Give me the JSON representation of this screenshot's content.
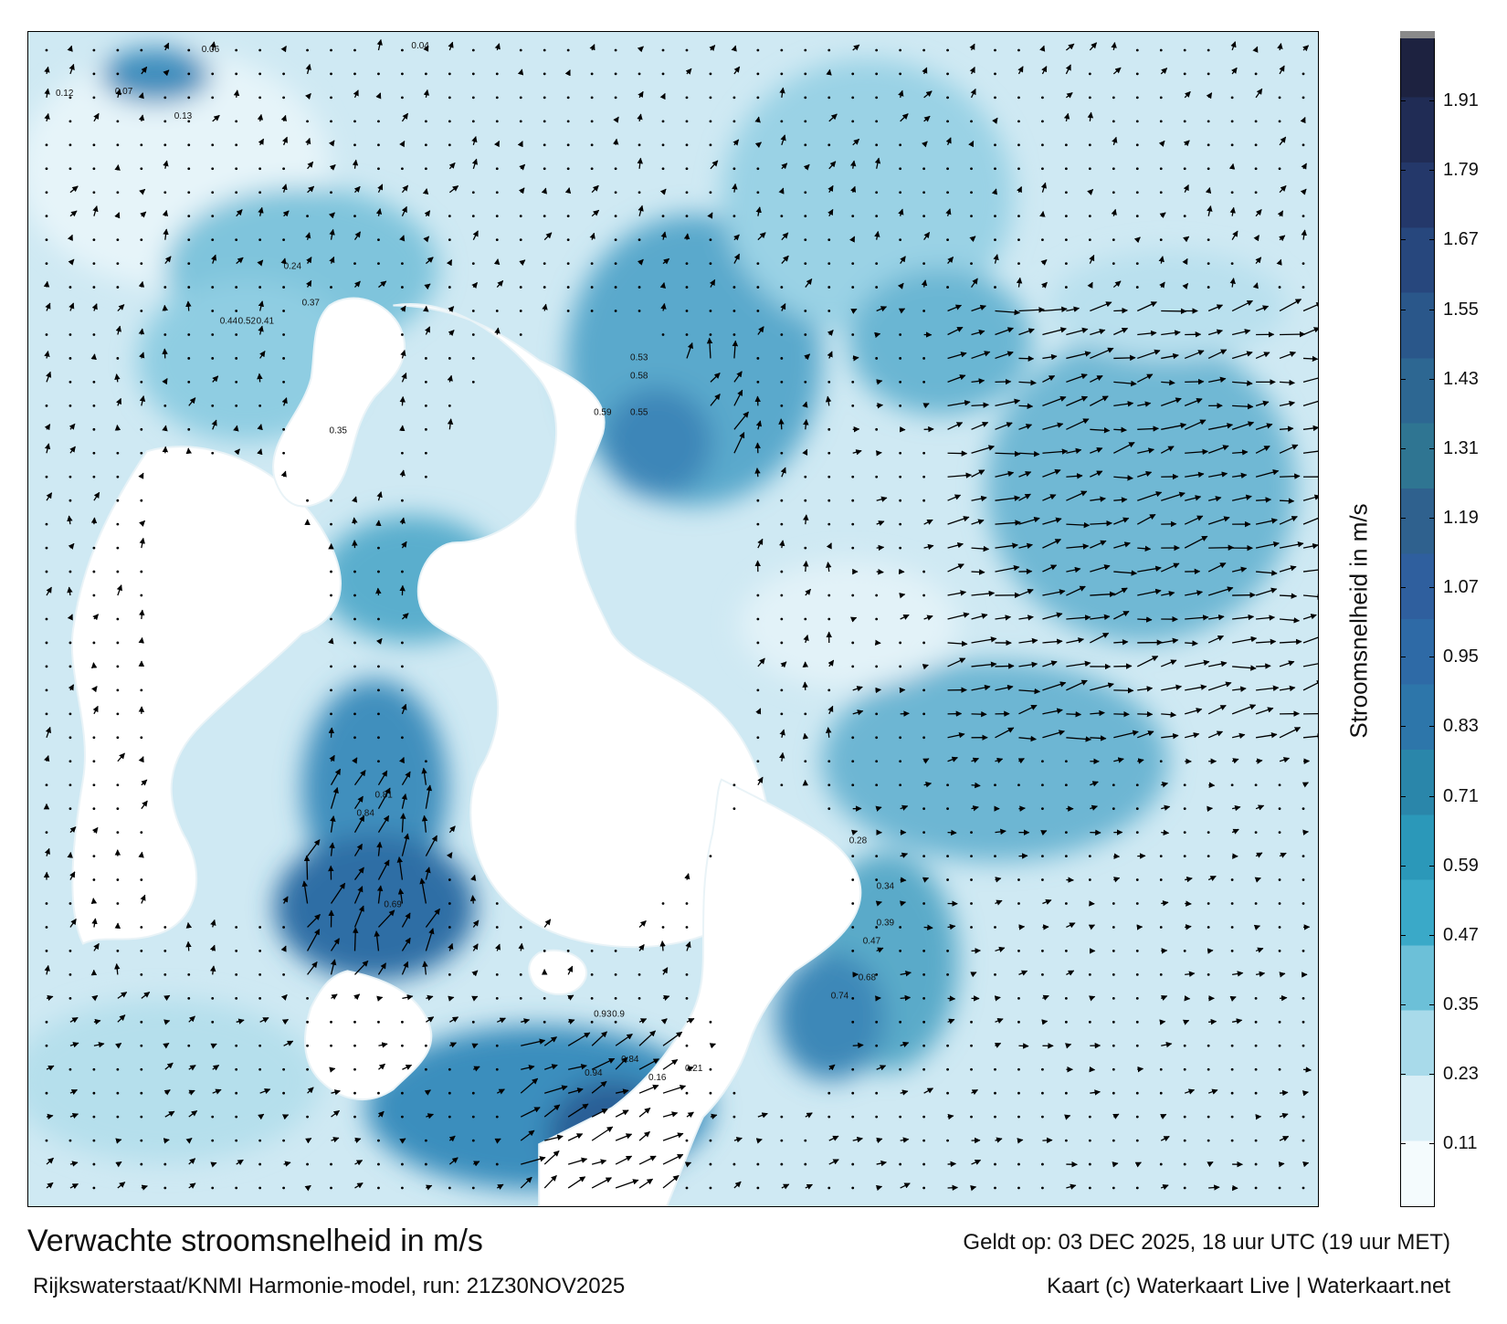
{
  "title": "Verwachte stroomsnelheid in m/s",
  "model_run": "Rijkswaterstaat/KNMI Harmonie-model, run: 21Z30NOV2025",
  "valid_time": "Geldt op: 03 DEC 2025, 18 uur UTC (19 uur MET)",
  "credit": "Kaart (c) Waterkaart Live | Waterkaart.net",
  "colorbar": {
    "title": "Stroomsnelheid in m/s",
    "ticks": [
      "1.91",
      "1.79",
      "1.67",
      "1.55",
      "1.43",
      "1.31",
      "1.19",
      "1.07",
      "0.95",
      "0.83",
      "0.71",
      "0.59",
      "0.47",
      "0.35",
      "0.23",
      "0.11"
    ],
    "colors": [
      "#1d2240",
      "#202c55",
      "#24386a",
      "#27477d",
      "#2a578a",
      "#2d6792",
      "#2f7592",
      "#2f618e",
      "#2f5f9e",
      "#2e6aa6",
      "#2d76aa",
      "#2a86aa",
      "#2b98b9",
      "#3aa9c8",
      "#6cc0d8",
      "#a8daea",
      "#d8eef6",
      "#f4fbfd"
    ],
    "range": [
      0.0,
      2.03
    ]
  },
  "map": {
    "colors": {
      "land": "#ffffff",
      "sea_light": "#d6eef6",
      "sea_mid": "#7ec6de",
      "sea_strong": "#3b95bd",
      "sea_peak": "#1f5f92",
      "arrow": "#000000"
    },
    "sample_values": [
      {
        "label": "0.12"
      },
      {
        "label": "0.07"
      },
      {
        "label": "0.06"
      },
      {
        "label": "0.04"
      },
      {
        "label": "0.13"
      },
      {
        "label": "0.24"
      },
      {
        "label": "0.37"
      },
      {
        "label": "0.41"
      },
      {
        "label": "0.52"
      },
      {
        "label": "0.44"
      },
      {
        "label": "0.53"
      },
      {
        "label": "0.58"
      },
      {
        "label": "0.59"
      },
      {
        "label": "0.55"
      },
      {
        "label": "0.35"
      },
      {
        "label": "0.81"
      },
      {
        "label": "0.84"
      },
      {
        "label": "0.69"
      },
      {
        "label": "0.9"
      },
      {
        "label": "0.93"
      },
      {
        "label": "0.94"
      },
      {
        "label": "0.84"
      },
      {
        "label": "0.74"
      },
      {
        "label": "0.68"
      },
      {
        "label": "0.47"
      },
      {
        "label": "0.39"
      },
      {
        "label": "0.34"
      },
      {
        "label": "0.28"
      },
      {
        "label": "0.21"
      },
      {
        "label": "0.16"
      }
    ]
  }
}
